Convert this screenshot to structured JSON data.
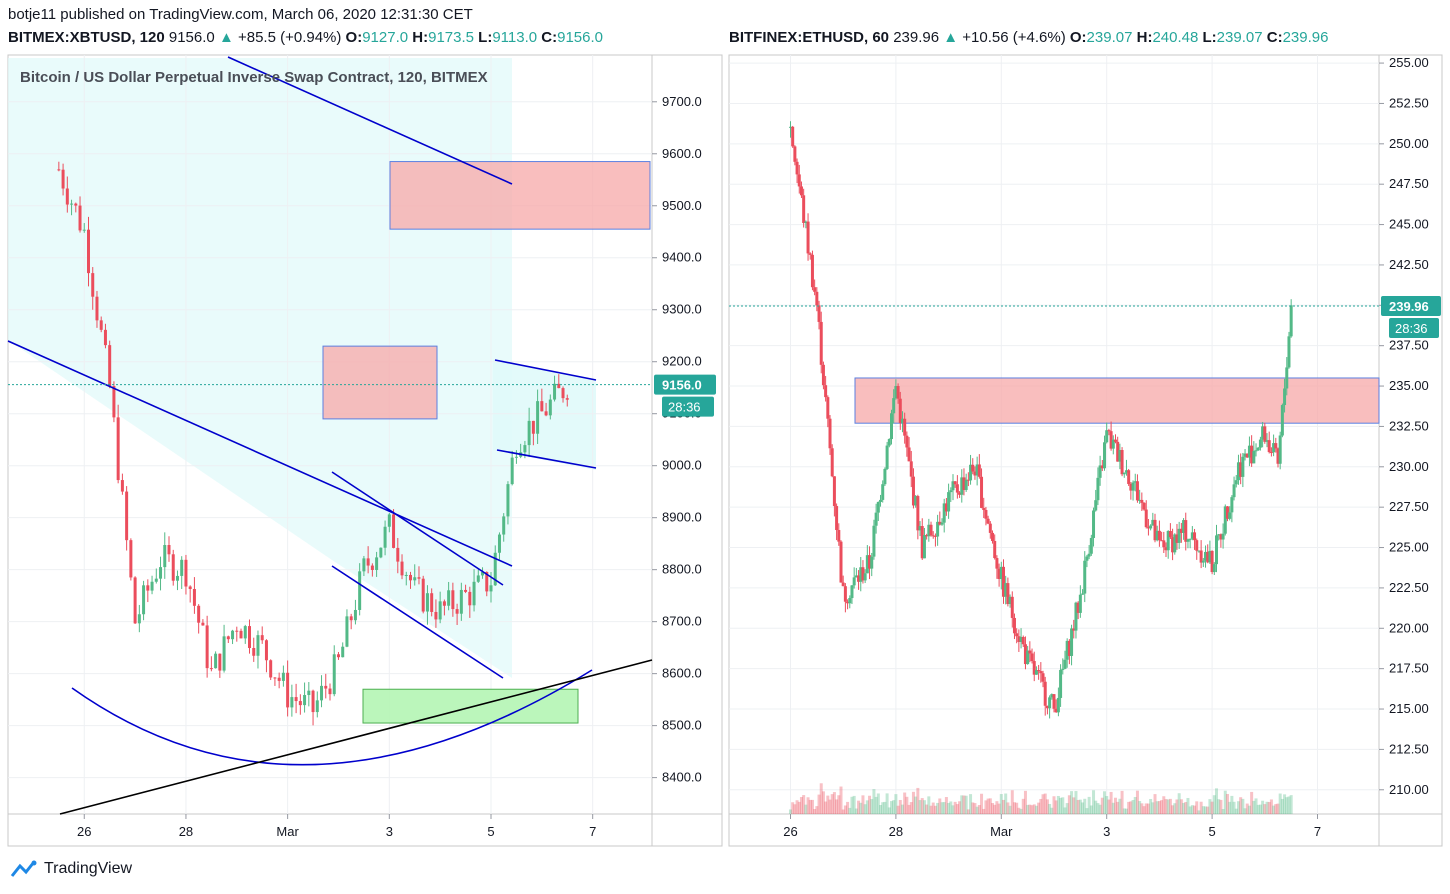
{
  "header": {
    "publisher_line": "botje11 published on TradingView.com, March 06, 2020 12:31:30 CET"
  },
  "left": {
    "symbol": "BITMEX:XBTUSD, 120",
    "last": "9156.0",
    "change": "+85.5 (+0.94%)",
    "o_label": "O:",
    "o": "9127.0",
    "h_label": "H:",
    "h": "9173.5",
    "l_label": "L:",
    "l": "9113.0",
    "c_label": "C:",
    "c": "9156.0",
    "title": "Bitcoin / US Dollar Perpetual Inverse Swap Contract, 120, BITMEX",
    "price_tag": "9156.0",
    "timer_tag": "28:36"
  },
  "right": {
    "symbol": "BITFINEX:ETHUSD, 60",
    "last": "239.96",
    "change": "+10.56 (+4.6%)",
    "o_label": "O:",
    "o": "239.07",
    "h_label": "H:",
    "h": "240.48",
    "l_label": "L:",
    "l": "239.07",
    "c_label": "C:",
    "c": "239.96",
    "price_tag": "239.96",
    "timer_tag": "28:36"
  },
  "brand": "TradingView",
  "colors": {
    "up": "#26a69a",
    "down": "#ef5350",
    "candle_up": "#53b987",
    "candle_down": "#eb4d5c",
    "trendline": "#0000cc",
    "zone_red": "#f7a8a8",
    "zone_green": "#b4f5b4",
    "shade": "#e0fafa"
  },
  "chart_data": [
    {
      "type": "candlestick",
      "symbol": "BITMEX:XBTUSD",
      "interval": "120",
      "y_axis_ticks": [
        "9700.0",
        "9600.0",
        "9500.0",
        "9400.0",
        "9300.0",
        "9200.0",
        "9100.0",
        "9000.0",
        "8900.0",
        "8800.0",
        "8700.0",
        "8600.0",
        "8500.0",
        "8400.0"
      ],
      "x_axis_ticks": [
        "26",
        "28",
        "Mar",
        "3",
        "5",
        "7"
      ],
      "ylim": [
        8330,
        9790
      ],
      "last_price": 9156.0,
      "approx_close_path": [
        {
          "x": "Feb 25 12:00",
          "y": 9570
        },
        {
          "x": "Feb 26 00:00",
          "y": 9450
        },
        {
          "x": "Feb 26 12:00",
          "y": 9150
        },
        {
          "x": "Feb 27 00:00",
          "y": 8700
        },
        {
          "x": "Feb 27 12:00",
          "y": 8820
        },
        {
          "x": "Feb 28 00:00",
          "y": 8800
        },
        {
          "x": "Feb 28 12:00",
          "y": 8600
        },
        {
          "x": "Feb 29 00:00",
          "y": 8700
        },
        {
          "x": "Feb 29 12:00",
          "y": 8650
        },
        {
          "x": "Mar 1 00:00",
          "y": 8560
        },
        {
          "x": "Mar 1 12:00",
          "y": 8530
        },
        {
          "x": "Mar 2 00:00",
          "y": 8620
        },
        {
          "x": "Mar 2 12:00",
          "y": 8800
        },
        {
          "x": "Mar 3 00:00",
          "y": 8880
        },
        {
          "x": "Mar 3 12:00",
          "y": 8760
        },
        {
          "x": "Mar 4 00:00",
          "y": 8720
        },
        {
          "x": "Mar 4 12:00",
          "y": 8750
        },
        {
          "x": "Mar 5 00:00",
          "y": 8780
        },
        {
          "x": "Mar 5 12:00",
          "y": 9050
        },
        {
          "x": "Mar 6 00:00",
          "y": 9100
        },
        {
          "x": "Mar 6 12:00",
          "y": 9156
        }
      ],
      "zones": [
        {
          "color": "red",
          "y": [
            9455,
            9585
          ]
        },
        {
          "color": "red",
          "y": [
            9090,
            9230
          ]
        },
        {
          "color": "green",
          "y": [
            8505,
            8570
          ]
        }
      ]
    },
    {
      "type": "candlestick",
      "symbol": "BITFINEX:ETHUSD",
      "interval": "60",
      "y_axis_ticks": [
        "255.00",
        "252.50",
        "250.00",
        "247.50",
        "245.00",
        "242.50",
        "240.00",
        "237.50",
        "235.00",
        "232.50",
        "230.00",
        "227.50",
        "225.00",
        "222.50",
        "220.00",
        "217.50",
        "215.00",
        "212.50",
        "210.00"
      ],
      "x_axis_ticks": [
        "26",
        "28",
        "Mar",
        "3",
        "5",
        "7"
      ],
      "ylim": [
        208.5,
        255.5
      ],
      "last_price": 239.96,
      "approx_close_path": [
        {
          "x": "Feb 26 00:00",
          "y": 251
        },
        {
          "x": "Feb 26 12:00",
          "y": 240
        },
        {
          "x": "Feb 27 00:00",
          "y": 222
        },
        {
          "x": "Feb 27 12:00",
          "y": 224
        },
        {
          "x": "Feb 28 00:00",
          "y": 235
        },
        {
          "x": "Feb 28 12:00",
          "y": 225
        },
        {
          "x": "Feb 29 00:00",
          "y": 228
        },
        {
          "x": "Feb 29 12:00",
          "y": 230
        },
        {
          "x": "Mar 1 00:00",
          "y": 223
        },
        {
          "x": "Mar 1 12:00",
          "y": 218
        },
        {
          "x": "Mar 2 00:00",
          "y": 215
        },
        {
          "x": "Mar 2 12:00",
          "y": 222
        },
        {
          "x": "Mar 3 00:00",
          "y": 232
        },
        {
          "x": "Mar 3 12:00",
          "y": 229
        },
        {
          "x": "Mar 4 00:00",
          "y": 225
        },
        {
          "x": "Mar 4 12:00",
          "y": 226
        },
        {
          "x": "Mar 5 00:00",
          "y": 224
        },
        {
          "x": "Mar 5 12:00",
          "y": 230
        },
        {
          "x": "Mar 6 00:00",
          "y": 232
        },
        {
          "x": "Mar 6 06:00",
          "y": 230
        },
        {
          "x": "Mar 6 12:00",
          "y": 239.96
        }
      ],
      "zones": [
        {
          "color": "red",
          "y": [
            232.7,
            235.5
          ]
        }
      ]
    }
  ]
}
